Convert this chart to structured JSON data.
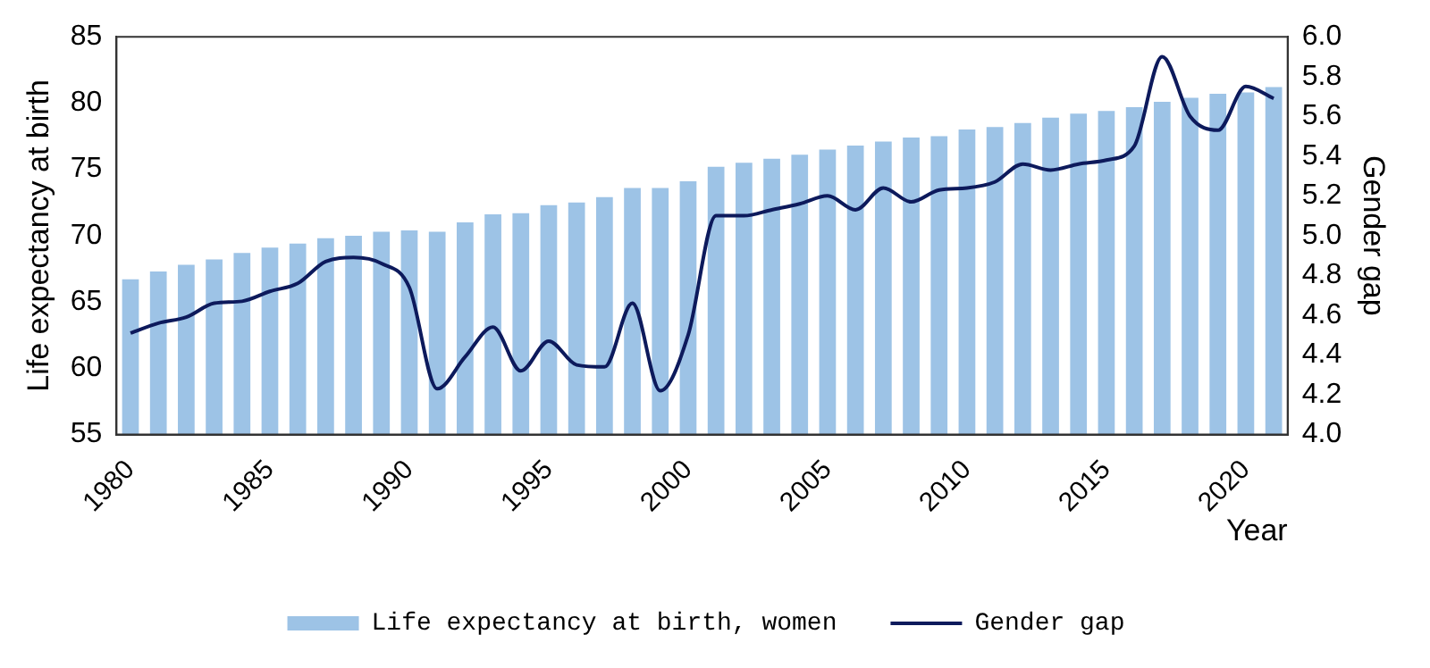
{
  "chart_data": {
    "type": "bar",
    "xlabel": "Year",
    "ylabel": "Life expectancy at birth",
    "y2label": "Gender gap",
    "categories": [
      "1980",
      null,
      null,
      null,
      null,
      "1985",
      null,
      null,
      null,
      null,
      "1990",
      null,
      null,
      null,
      null,
      "1995",
      null,
      null,
      null,
      null,
      "2000",
      null,
      null,
      null,
      null,
      "2005",
      null,
      null,
      null,
      null,
      "2010",
      null,
      null,
      null,
      null,
      "2015",
      null,
      null,
      null,
      null,
      "2020",
      null
    ],
    "series": [
      {
        "name": "Life expectancy at birth, women",
        "color": "#9dc3e6",
        "values": [
          66.7,
          67.3,
          67.8,
          68.2,
          68.7,
          69.1,
          69.4,
          69.8,
          70.0,
          70.3,
          70.4,
          70.3,
          71.0,
          71.6,
          71.7,
          72.3,
          72.5,
          72.9,
          73.6,
          73.6,
          74.1,
          75.2,
          75.5,
          75.8,
          76.1,
          76.5,
          76.8,
          77.1,
          77.4,
          77.5,
          78.0,
          78.2,
          78.5,
          78.9,
          79.2,
          79.4,
          79.7,
          80.1,
          80.4,
          80.7,
          80.8,
          81.2
        ]
      },
      {
        "name": "Gender gap",
        "type": "line",
        "axis": "y2",
        "color": "#0d1a5c",
        "values": [
          4.51,
          4.56,
          4.59,
          4.66,
          4.67,
          4.72,
          4.76,
          4.87,
          4.89,
          4.86,
          4.74,
          4.23,
          4.39,
          4.54,
          4.32,
          4.47,
          4.35,
          4.34,
          4.66,
          4.22,
          4.5,
          5.1,
          5.1,
          5.13,
          5.16,
          5.2,
          5.13,
          5.24,
          5.17,
          5.23,
          5.24,
          5.27,
          5.36,
          5.33,
          5.36,
          5.38,
          5.45,
          5.9,
          5.6,
          5.53,
          5.75,
          5.69
        ]
      }
    ],
    "ylim": [
      55,
      85
    ],
    "yticks": [
      55,
      60,
      65,
      70,
      75,
      80,
      85
    ],
    "y2lim": [
      4,
      6
    ],
    "y2ticks": [
      {
        "value": 4,
        "label": "4.0"
      },
      4.2,
      4.4,
      4.6,
      4.8,
      {
        "value": 5,
        "label": "5.0"
      },
      5.2,
      5.4,
      5.6,
      5.8,
      {
        "value": 6,
        "label": "6.0"
      }
    ],
    "grid": false,
    "legend": "bottom",
    "line_style": "solid"
  }
}
